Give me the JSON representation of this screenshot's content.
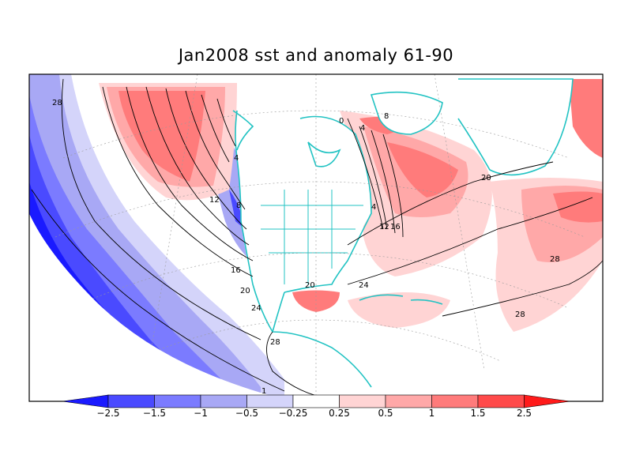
{
  "title": "Jan2008 sst and anomaly 61-90",
  "contour_labels": [
    "28",
    "4",
    "12",
    "8",
    "16",
    "20",
    "24",
    "28",
    "1",
    "0",
    "4",
    "8",
    "4",
    "12",
    "16",
    "20",
    "24",
    "28",
    "20",
    "28"
  ],
  "colorbar": {
    "labels": [
      "−2.5",
      "−1.5",
      "−1",
      "−0.5",
      "−0.25",
      "0.25",
      "0.5",
      "1",
      "1.5",
      "2.5"
    ],
    "colors": [
      "#1a1aff",
      "#4a4aff",
      "#7b7bff",
      "#a8a8f5",
      "#d4d4fa",
      "#ffffff",
      "#ffd4d4",
      "#ffa8a8",
      "#ff7b7b",
      "#ff4a4a",
      "#ff1a1a"
    ]
  },
  "coast_color": "#22c3c3"
}
